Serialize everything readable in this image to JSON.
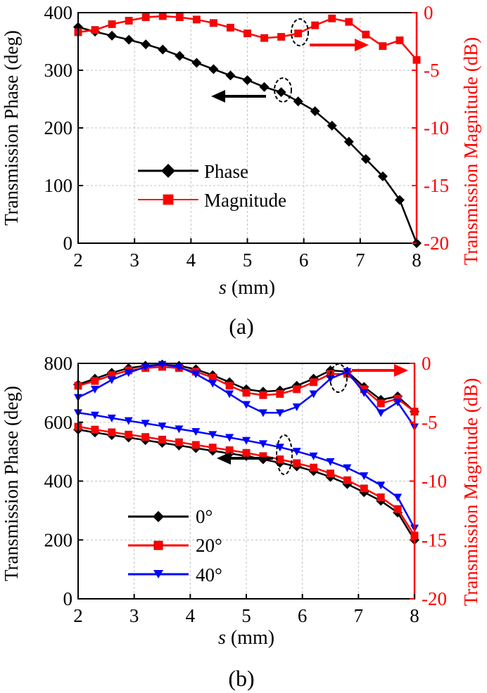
{
  "colors": {
    "phase": "#000000",
    "magnitude": "#ff0000",
    "blue": "#0000ff",
    "grid": "#c0c0c0",
    "arrow_red": "#ff0000",
    "arrow_black": "#000000"
  },
  "chart_data": [
    {
      "type": "line",
      "panel_label": "(a)",
      "xlabel_italic": "s",
      "xlabel_unit": "(mm)",
      "ylabel_left": "Transmission Phase (deg)",
      "ylabel_right": "Transmission Magnitude (dB)",
      "xlim": [
        2,
        8
      ],
      "ylim_left": [
        0,
        400
      ],
      "ylim_right": [
        -20,
        0
      ],
      "x_ticks": [
        2,
        3,
        4,
        5,
        6,
        7,
        8
      ],
      "y_ticks_left": [
        0,
        100,
        200,
        300,
        400
      ],
      "y_ticks_right": [
        -20,
        -15,
        -10,
        -5,
        0
      ],
      "legend": [
        "Phase",
        "Magnitude"
      ],
      "series": [
        {
          "name": "Phase",
          "axis": "left",
          "marker": "diamond",
          "color": "#000000",
          "x": [
            2.0,
            2.3,
            2.6,
            2.9,
            3.2,
            3.5,
            3.8,
            4.1,
            4.4,
            4.7,
            5.0,
            5.3,
            5.6,
            5.9,
            6.2,
            6.5,
            6.8,
            7.1,
            7.4,
            7.7,
            8.0
          ],
          "values": [
            375,
            367,
            360,
            353,
            345,
            336,
            325,
            313,
            302,
            291,
            283,
            271,
            262,
            246,
            229,
            204,
            176,
            146,
            116,
            75,
            0
          ]
        },
        {
          "name": "Magnitude",
          "axis": "right",
          "marker": "square",
          "color": "#ff0000",
          "x": [
            2.0,
            2.3,
            2.6,
            2.9,
            3.2,
            3.5,
            3.8,
            4.1,
            4.4,
            4.7,
            5.0,
            5.3,
            5.6,
            5.9,
            6.2,
            6.5,
            6.8,
            7.1,
            7.4,
            7.7,
            8.0
          ],
          "values": [
            -1.7,
            -1.5,
            -1.0,
            -0.7,
            -0.4,
            -0.3,
            -0.4,
            -0.6,
            -0.9,
            -1.3,
            -1.8,
            -2.2,
            -2.1,
            -1.8,
            -1.1,
            -0.5,
            -0.8,
            -1.9,
            -2.9,
            -2.4,
            -4.1
          ]
        }
      ],
      "annotations": [
        "left arrow to Phase axis",
        "right arrow to Magnitude axis"
      ]
    },
    {
      "type": "line",
      "panel_label": "(b)",
      "xlabel_italic": "s",
      "xlabel_unit": "(mm)",
      "ylabel_left": "Transmission Phase (deg)",
      "ylabel_right": "Transmission Magnitude (dB)",
      "xlim": [
        2,
        8
      ],
      "ylim_left": [
        0,
        800
      ],
      "ylim_right": [
        -20,
        0
      ],
      "x_ticks": [
        2,
        3,
        4,
        5,
        6,
        7,
        8
      ],
      "y_ticks_left": [
        0,
        200,
        400,
        600,
        800
      ],
      "y_ticks_right": [
        -20,
        -15,
        -10,
        -5,
        0
      ],
      "legend": [
        "0°",
        "20°",
        "40°"
      ],
      "series": [
        {
          "name": "0°",
          "axis": "left",
          "marker": "diamond",
          "color": "#000000",
          "x": [
            2.0,
            2.3,
            2.6,
            2.9,
            3.2,
            3.5,
            3.8,
            4.1,
            4.4,
            4.7,
            5.0,
            5.3,
            5.6,
            5.9,
            6.2,
            6.5,
            6.8,
            7.1,
            7.4,
            7.7,
            8.0
          ],
          "values": [
            575,
            565,
            556,
            548,
            539,
            530,
            521,
            512,
            503,
            494,
            485,
            474,
            462,
            450,
            434,
            414,
            390,
            362,
            333,
            293,
            200
          ]
        },
        {
          "name": "20°",
          "axis": "left",
          "marker": "square",
          "color": "#ff0000",
          "x": [
            2.0,
            2.3,
            2.6,
            2.9,
            3.2,
            3.5,
            3.8,
            4.1,
            4.4,
            4.7,
            5.0,
            5.3,
            5.6,
            5.9,
            6.2,
            6.5,
            6.8,
            7.1,
            7.4,
            7.7,
            8.0
          ],
          "values": [
            585,
            575,
            566,
            558,
            550,
            541,
            532,
            523,
            514,
            505,
            496,
            485,
            474,
            461,
            446,
            426,
            403,
            375,
            345,
            305,
            215
          ]
        },
        {
          "name": "40°",
          "axis": "left",
          "marker": "triangle-down",
          "color": "#0000ff",
          "x": [
            2.0,
            2.3,
            2.6,
            2.9,
            3.2,
            3.5,
            3.8,
            4.1,
            4.4,
            4.7,
            5.0,
            5.3,
            5.6,
            5.9,
            6.2,
            6.5,
            6.8,
            7.1,
            7.4,
            7.7,
            8.0
          ],
          "values": [
            632,
            624,
            614,
            605,
            596,
            587,
            577,
            568,
            558,
            548,
            538,
            527,
            515,
            501,
            485,
            466,
            445,
            418,
            386,
            345,
            240
          ]
        },
        {
          "name": "0° magnitude",
          "axis": "right",
          "marker": "diamond",
          "color": "#000000",
          "x": [
            2.0,
            2.3,
            2.6,
            2.9,
            3.2,
            3.5,
            3.8,
            4.1,
            4.4,
            4.7,
            5.0,
            5.3,
            5.6,
            5.9,
            6.2,
            6.5,
            6.8,
            7.1,
            7.4,
            7.7,
            8.0
          ],
          "values": [
            -1.8,
            -1.3,
            -0.8,
            -0.4,
            -0.2,
            -0.1,
            -0.2,
            -0.5,
            -1.0,
            -1.6,
            -2.2,
            -2.4,
            -2.3,
            -1.9,
            -1.3,
            -0.6,
            -0.7,
            -2.0,
            -3.1,
            -2.8,
            -4.1
          ]
        },
        {
          "name": "20° magnitude",
          "axis": "right",
          "marker": "square",
          "color": "#ff0000",
          "x": [
            2.0,
            2.3,
            2.6,
            2.9,
            3.2,
            3.5,
            3.8,
            4.1,
            4.4,
            4.7,
            5.0,
            5.3,
            5.6,
            5.9,
            6.2,
            6.5,
            6.8,
            7.1,
            7.4,
            7.7,
            8.0
          ],
          "values": [
            -1.9,
            -1.5,
            -1.0,
            -0.6,
            -0.4,
            -0.3,
            -0.4,
            -0.7,
            -1.2,
            -1.9,
            -2.5,
            -2.7,
            -2.6,
            -2.2,
            -1.6,
            -0.9,
            -0.9,
            -2.2,
            -3.4,
            -3.0,
            -4.1
          ]
        },
        {
          "name": "40° magnitude",
          "axis": "right",
          "marker": "triangle-down",
          "color": "#0000ff",
          "x": [
            2.0,
            2.3,
            2.6,
            2.9,
            3.2,
            3.5,
            3.8,
            4.1,
            4.4,
            4.7,
            5.0,
            5.3,
            5.6,
            5.9,
            6.2,
            6.5,
            6.8,
            7.1,
            7.4,
            7.7,
            8.0
          ],
          "values": [
            -2.9,
            -2.2,
            -1.4,
            -0.8,
            -0.3,
            -0.1,
            -0.3,
            -0.9,
            -1.7,
            -2.6,
            -3.5,
            -4.2,
            -4.2,
            -3.7,
            -2.6,
            -1.3,
            -0.7,
            -2.5,
            -4.2,
            -3.3,
            -5.4
          ]
        }
      ],
      "annotations": [
        "left arrow to Phase axis",
        "right arrow to Magnitude axis"
      ]
    }
  ]
}
